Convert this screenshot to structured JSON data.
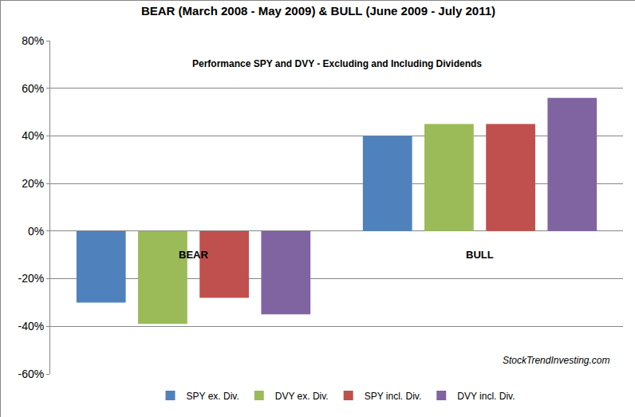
{
  "chart_data": {
    "type": "bar",
    "title": "BEAR (March 2008 - May 2009) & BULL (June 2009 - July 2011)",
    "subtitle": "Performance SPY and DVY - Excluding and Including Dividends",
    "categories": [
      "BEAR",
      "BULL"
    ],
    "series": [
      {
        "name": "SPY ex. Div.",
        "color": "#4F81BD",
        "values": [
          -30,
          40
        ]
      },
      {
        "name": "DVY ex. Div.",
        "color": "#9BBB59",
        "values": [
          -39,
          45
        ]
      },
      {
        "name": "SPY incl. Div.",
        "color": "#C0504D",
        "values": [
          -28,
          45
        ]
      },
      {
        "name": "DVY incl. Div.",
        "color": "#8064A2",
        "values": [
          -35,
          56
        ]
      }
    ],
    "ylim": [
      -60,
      80
    ],
    "yticks": [
      {
        "value": -60,
        "label": "-60%"
      },
      {
        "value": -40,
        "label": "-40%"
      },
      {
        "value": -20,
        "label": "-20%"
      },
      {
        "value": 0,
        "label": "0%"
      },
      {
        "value": 20,
        "label": "20%"
      },
      {
        "value": 40,
        "label": "40%"
      },
      {
        "value": 60,
        "label": "60%"
      },
      {
        "value": 80,
        "label": "80%"
      }
    ],
    "grid": true,
    "legend": "bottom",
    "tick_labels": "y",
    "annotations": [
      "StockTrendInvesting.com"
    ]
  }
}
